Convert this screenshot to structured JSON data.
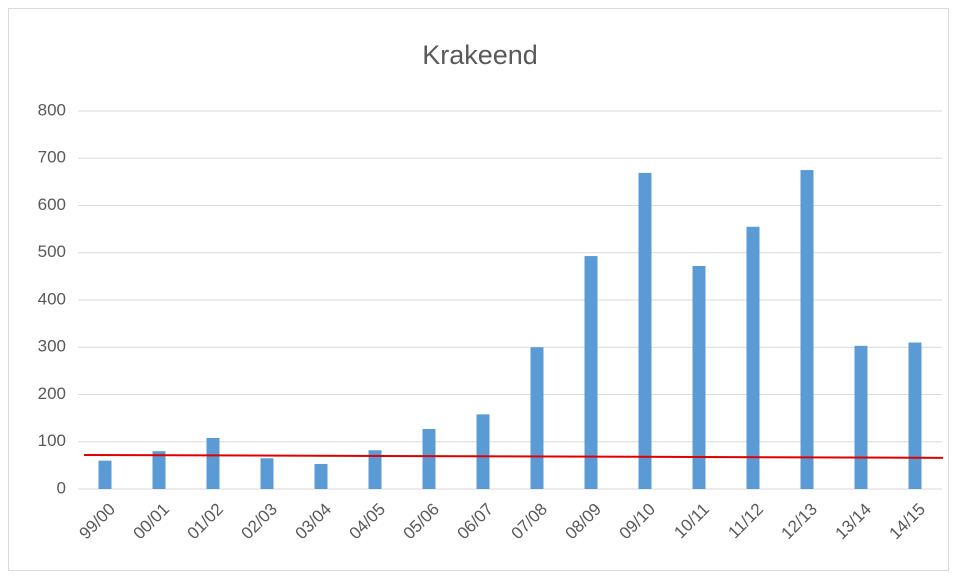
{
  "chart_data": {
    "type": "bar",
    "title": "Krakeend",
    "categories": [
      "99/00",
      "00/01",
      "01/02",
      "02/03",
      "03/04",
      "04/05",
      "05/06",
      "06/07",
      "07/08",
      "08/09",
      "09/10",
      "10/11",
      "11/12",
      "12/13",
      "13/14",
      "14/15"
    ],
    "values": [
      60,
      80,
      108,
      65,
      53,
      82,
      127,
      158,
      300,
      493,
      669,
      472,
      555,
      675,
      303,
      310
    ],
    "color": "#5b9bd5",
    "ylim": [
      0,
      800
    ],
    "yticks": [
      0,
      100,
      200,
      300,
      400,
      500,
      600,
      700,
      800
    ],
    "grid": true,
    "trend_line": {
      "color": "#e00000",
      "values": [
        72,
        66
      ]
    }
  }
}
